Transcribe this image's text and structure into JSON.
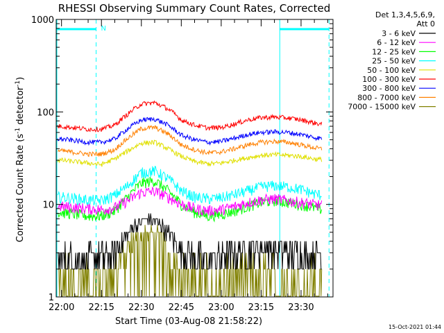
{
  "chart_data": {
    "type": "line",
    "title": "RHESSI Observing Summary Count Rates, Corrected",
    "xlabel": "Start Time (03-Aug-08 21:58:22)",
    "ylabel_main": "Corrected Count Rate (s",
    "ylabel_sup1": "-1",
    "ylabel_mid": " detector",
    "ylabel_sup2": "-1",
    "ylabel_end": ")",
    "yscale": "log",
    "ylim": [
      1,
      1000
    ],
    "ytick_labels": [
      "1",
      "10",
      "100",
      "1000"
    ],
    "xlim_minutes": [
      -2,
      102
    ],
    "xtick_labels": [
      "22:00",
      "22:15",
      "22:30",
      "22:45",
      "23:00",
      "23:15",
      "23:30"
    ],
    "xtick_minutes": [
      0,
      15,
      30,
      45,
      60,
      75,
      90
    ],
    "detectors": "Det 1,3,4,5,6,9,",
    "attenuator": "Att 0",
    "night_label": "N",
    "timestamp": "15-Oct-2021 01:44",
    "series": [
      {
        "name": "3 - 6 keV",
        "color": "#000000",
        "t": [
          0,
          14,
          20,
          24,
          28,
          32,
          36,
          40,
          44,
          48,
          52,
          56,
          60,
          64,
          70,
          76,
          82,
          90,
          102
        ],
        "y": [
          2.6,
          2.6,
          3.0,
          4.5,
          6.2,
          7.0,
          6.5,
          4.8,
          3.6,
          3.0,
          2.6,
          2.6,
          2.7,
          3.0,
          3.3,
          3.4,
          3.2,
          2.9,
          2.7
        ]
      },
      {
        "name": "6 - 12 keV",
        "color": "#ff00ff",
        "t": [
          0,
          10,
          15,
          20,
          25,
          30,
          35,
          40,
          45,
          50,
          55,
          60,
          65,
          70,
          75,
          80,
          85,
          90,
          95,
          102
        ],
        "y": [
          9.5,
          9.0,
          8.8,
          9.2,
          11,
          13.5,
          13.8,
          12,
          10,
          9.0,
          8.6,
          8.8,
          9.5,
          10.5,
          11.2,
          11.5,
          11,
          10.5,
          10,
          9.5
        ]
      },
      {
        "name": "12 - 25 keV",
        "color": "#00ff00",
        "t": [
          0,
          10,
          15,
          20,
          25,
          30,
          35,
          40,
          45,
          50,
          55,
          60,
          65,
          70,
          75,
          80,
          85,
          90,
          95,
          102
        ],
        "y": [
          8.2,
          7.5,
          7.5,
          8.5,
          12,
          17,
          18,
          14,
          10,
          8.2,
          7.5,
          7.8,
          8.5,
          9.5,
          10.5,
          11,
          10.5,
          10,
          9.2,
          8.3
        ]
      },
      {
        "name": "25 - 50 keV",
        "color": "#00ffff",
        "t": [
          0,
          10,
          15,
          20,
          25,
          30,
          35,
          40,
          45,
          50,
          55,
          60,
          65,
          70,
          75,
          80,
          85,
          90,
          95,
          102
        ],
        "y": [
          12,
          11.2,
          11,
          12.5,
          16,
          22,
          23,
          19,
          14,
          12,
          11.5,
          11.8,
          12.8,
          14,
          15.5,
          16,
          15.5,
          14.5,
          13,
          12
        ]
      },
      {
        "name": "50 - 100 keV",
        "color": "#e0e000",
        "t": [
          0,
          10,
          15,
          20,
          25,
          30,
          35,
          40,
          45,
          50,
          55,
          60,
          65,
          70,
          75,
          80,
          85,
          90,
          95,
          102
        ],
        "y": [
          30,
          28,
          27,
          31,
          38,
          46,
          47,
          40,
          33,
          29,
          27.5,
          28,
          30,
          32,
          34,
          34.5,
          34,
          33,
          31,
          30
        ]
      },
      {
        "name": "100 - 300 keV",
        "color": "#ff0000",
        "t": [
          0,
          10,
          15,
          20,
          25,
          30,
          35,
          40,
          45,
          50,
          55,
          60,
          65,
          70,
          75,
          80,
          85,
          90,
          95,
          102
        ],
        "y": [
          70,
          65,
          65,
          72,
          95,
          122,
          126,
          108,
          82,
          72,
          67,
          68,
          74,
          82,
          87,
          88,
          86,
          82,
          76,
          70
        ]
      },
      {
        "name": "300 - 800 keV",
        "color": "#0000ff",
        "t": [
          0,
          10,
          15,
          20,
          25,
          30,
          35,
          40,
          45,
          50,
          55,
          60,
          65,
          70,
          75,
          80,
          85,
          90,
          95,
          102
        ],
        "y": [
          51,
          47,
          47,
          51,
          66,
          82,
          84,
          72,
          56,
          50,
          47,
          48,
          52,
          57,
          60,
          61,
          60,
          57,
          53,
          50
        ]
      },
      {
        "name": "800 - 7000 keV",
        "color": "#ff8000",
        "t": [
          0,
          10,
          15,
          20,
          25,
          30,
          35,
          40,
          45,
          50,
          55,
          60,
          65,
          70,
          75,
          80,
          85,
          90,
          95,
          102
        ],
        "y": [
          38,
          35,
          35,
          39,
          52,
          66,
          68,
          58,
          44,
          39,
          36,
          37,
          40,
          44,
          47,
          48,
          47,
          44,
          41,
          38
        ]
      },
      {
        "name": "7000 - 15000 keV",
        "color": "#808000",
        "t": [
          0,
          14,
          20,
          24,
          28,
          32,
          36,
          40,
          44,
          48,
          52,
          56,
          60,
          64,
          70,
          76,
          82,
          90,
          102
        ],
        "y": [
          1.6,
          1.6,
          2.0,
          3.0,
          4.4,
          4.9,
          4.6,
          3.2,
          2.2,
          1.7,
          1.5,
          1.5,
          1.6,
          1.7,
          1.8,
          1.8,
          1.7,
          1.6,
          1.5
        ]
      }
    ],
    "night_intervals_minutes": [
      [
        -2,
        13
      ],
      [
        82,
        100.5
      ]
    ]
  }
}
